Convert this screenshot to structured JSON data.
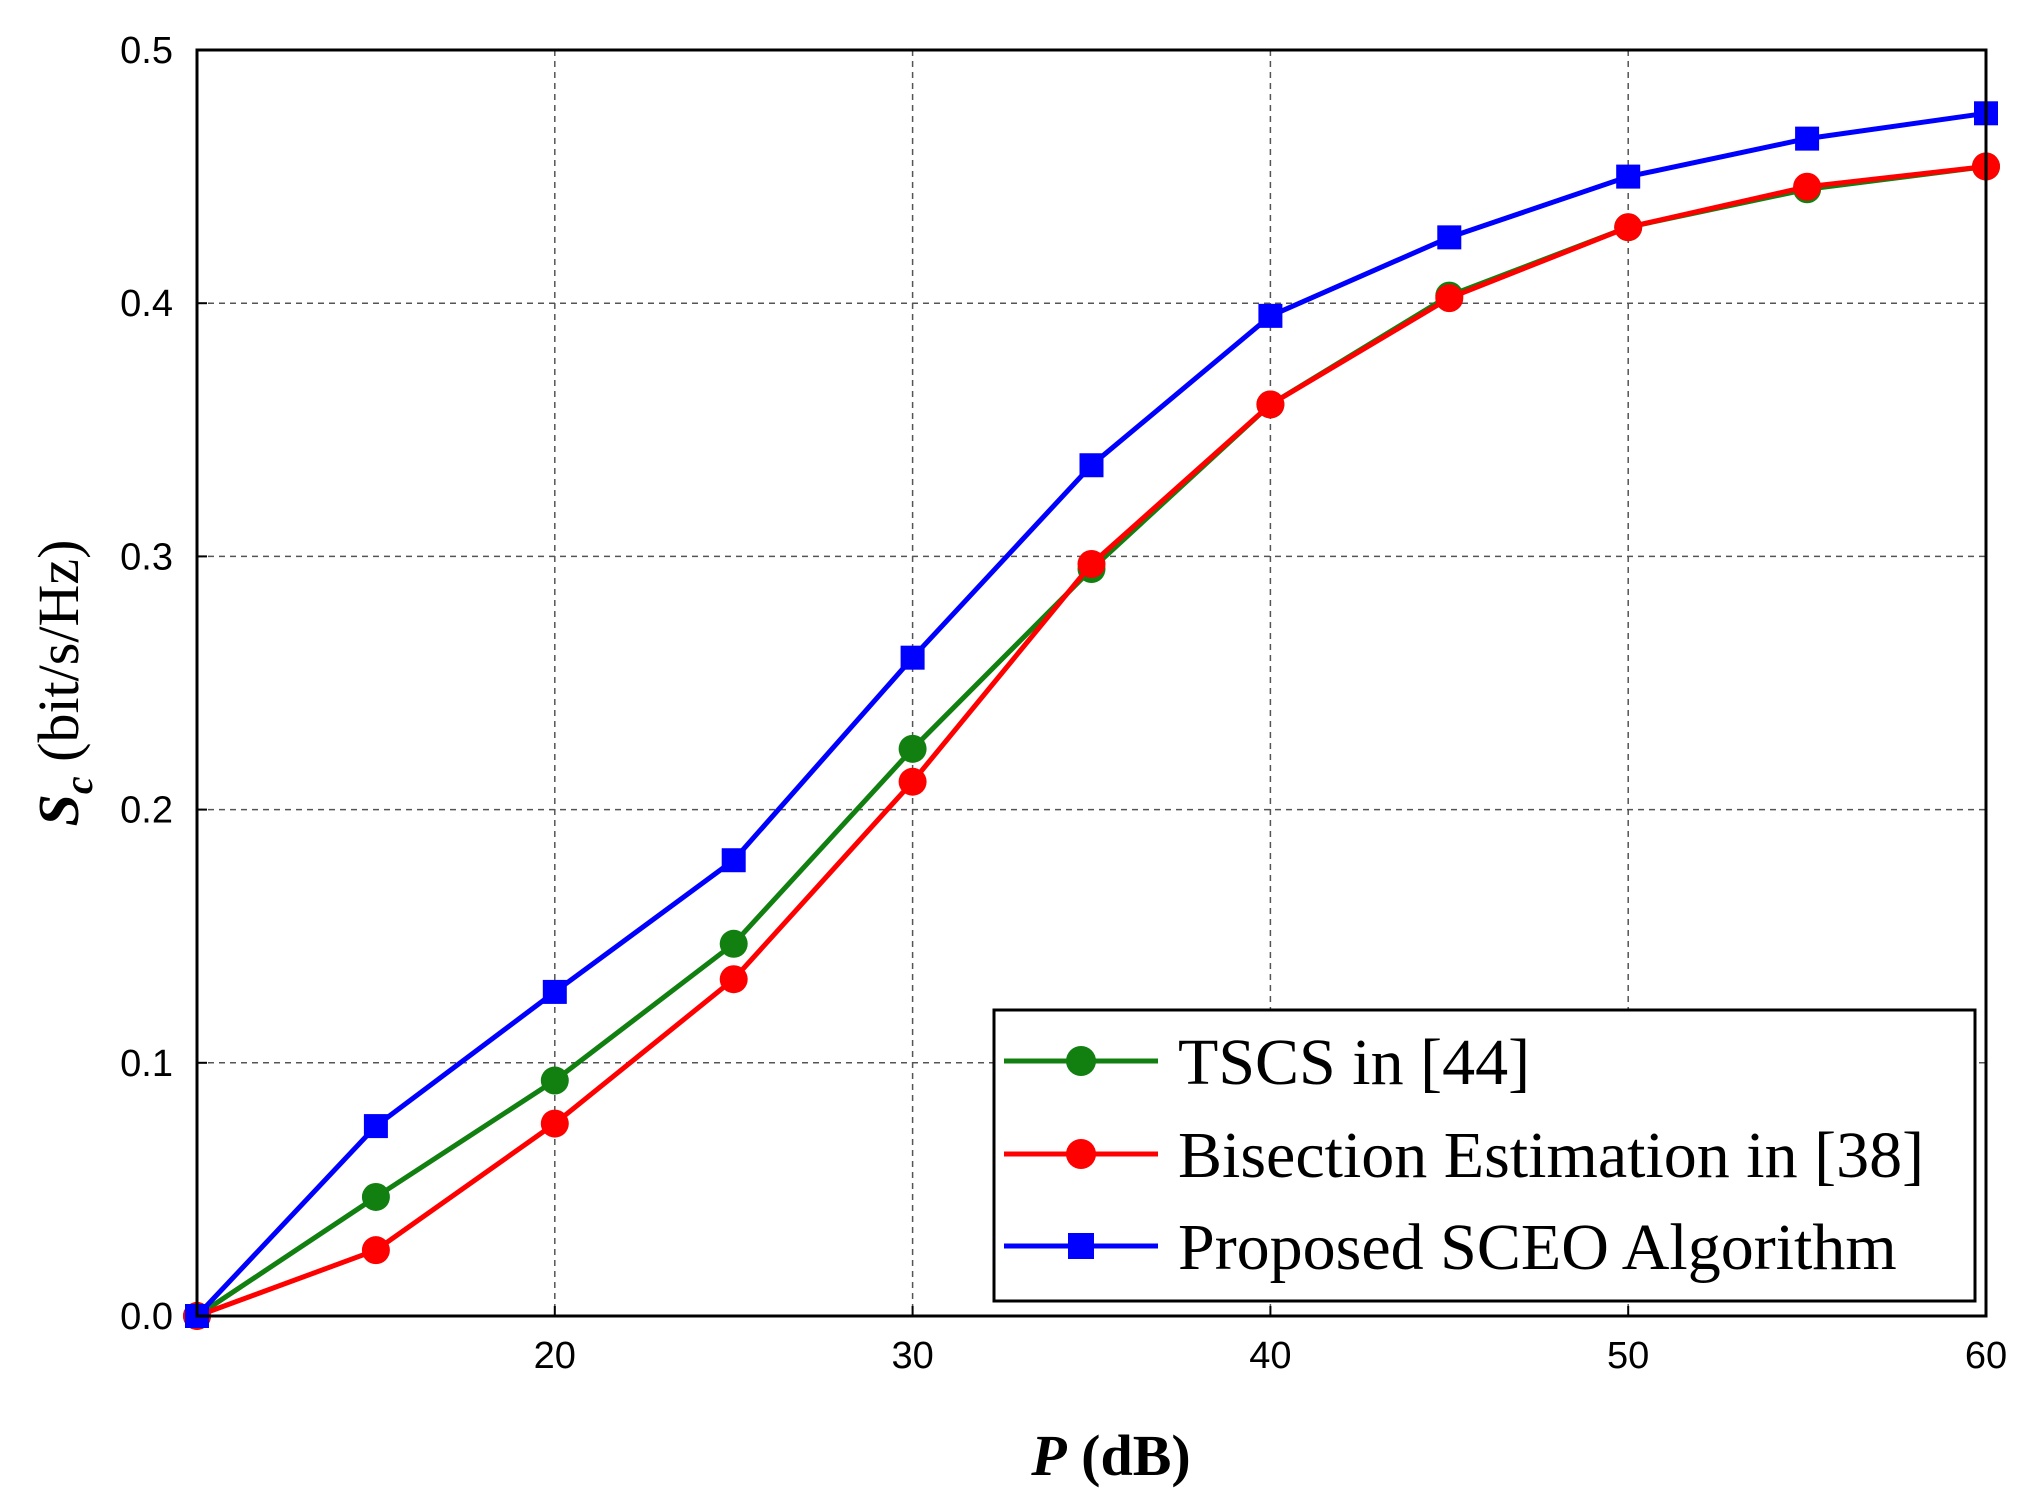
{
  "chart_data": {
    "type": "line",
    "title": "",
    "xlabel": {
      "var": "P",
      "unit": " (dB)"
    },
    "ylabel": {
      "var": "S",
      "sub": "c",
      "unit": " (bit/s/Hz)"
    },
    "xlim": [
      10,
      60
    ],
    "ylim": [
      0,
      0.5
    ],
    "xticks": [
      20,
      30,
      40,
      50,
      60
    ],
    "xtick_labels": [
      "20",
      "30",
      "40",
      "50",
      "60"
    ],
    "yticks": [
      0,
      0.1,
      0.2,
      0.3,
      0.4,
      0.5
    ],
    "ytick_labels": [
      "0.0",
      "0.1",
      "0.2",
      "0.3",
      "0.4",
      "0.5"
    ],
    "grid": true,
    "legend_position": "bottom-right",
    "x": [
      10,
      15,
      20,
      25,
      30,
      35,
      40,
      45,
      50,
      55,
      60
    ],
    "series": [
      {
        "name": "TSCS in [44]",
        "color": "#118011",
        "marker": "circle",
        "values": [
          0.0,
          0.047,
          0.093,
          0.147,
          0.224,
          0.295,
          0.36,
          0.403,
          0.43,
          0.445,
          0.454
        ]
      },
      {
        "name": "Bisection Estimation in [38]",
        "color": "#ff0000",
        "marker": "circle",
        "values": [
          0.0,
          0.026,
          0.076,
          0.133,
          0.211,
          0.297,
          0.36,
          0.402,
          0.43,
          0.446,
          0.454
        ]
      },
      {
        "name": "Proposed SCEO Algorithm",
        "color": "#0000ff",
        "marker": "square",
        "values": [
          0.0,
          0.075,
          0.128,
          0.18,
          0.26,
          0.336,
          0.395,
          0.426,
          0.45,
          0.465,
          0.475
        ]
      }
    ]
  }
}
